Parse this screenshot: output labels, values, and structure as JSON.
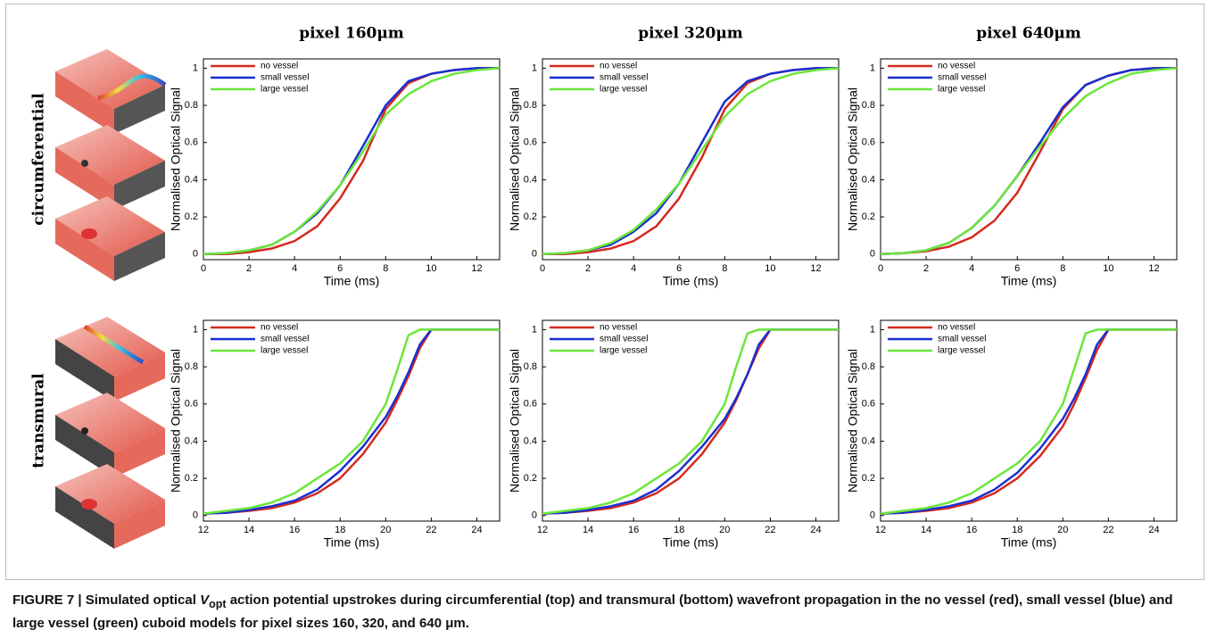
{
  "columns": [
    "pixel  160μm",
    "pixel 320μm",
    "pixel 640μm"
  ],
  "rows": [
    "circumferential",
    "transmural"
  ],
  "caption": {
    "lead": "FIGURE 7 | Simulated optical ",
    "symbol": "V",
    "subscript": "opt",
    "rest": " action potential upstrokes during circumferential (top) and transmural (bottom) wavefront propagation in the no vessel (red), small vessel (blue) and large vessel (green) cuboid models for pixel sizes 160, 320, and 640 μm."
  },
  "chart_data": [
    {
      "type": "line",
      "xlabel": "Time (ms)",
      "ylabel": "Normalised Optical Signal",
      "legend": "upper left",
      "x": [
        0,
        1,
        2,
        3,
        4,
        5,
        6,
        7,
        8,
        9,
        10,
        11,
        12,
        13
      ],
      "xlim": [
        0,
        13
      ],
      "xticks": [
        0,
        2,
        4,
        6,
        8,
        10,
        12
      ],
      "ylim": [
        -0.03,
        1.05
      ],
      "yticks": [
        0,
        0.2,
        0.4,
        0.6,
        0.8,
        1
      ],
      "series": [
        {
          "name": "no vessel",
          "color": "#d42a1e",
          "values": [
            0,
            0,
            0.01,
            0.03,
            0.07,
            0.15,
            0.3,
            0.5,
            0.78,
            0.92,
            0.97,
            0.99,
            1,
            1
          ]
        },
        {
          "name": "small vessel",
          "color": "#1a2fd0",
          "values": [
            0,
            0.005,
            0.02,
            0.05,
            0.12,
            0.22,
            0.37,
            0.58,
            0.8,
            0.93,
            0.97,
            0.99,
            1,
            1
          ]
        },
        {
          "name": "large vessel",
          "color": "#6be63a",
          "values": [
            0,
            0.005,
            0.02,
            0.05,
            0.12,
            0.23,
            0.37,
            0.55,
            0.75,
            0.86,
            0.93,
            0.97,
            0.99,
            1
          ]
        }
      ]
    },
    {
      "type": "line",
      "xlabel": "Time (ms)",
      "ylabel": "Normalised Optical Signal",
      "legend": "upper left",
      "x": [
        0,
        1,
        2,
        3,
        4,
        5,
        6,
        7,
        8,
        9,
        10,
        11,
        12,
        13
      ],
      "xlim": [
        0,
        13
      ],
      "xticks": [
        0,
        2,
        4,
        6,
        8,
        10,
        12
      ],
      "ylim": [
        -0.03,
        1.05
      ],
      "yticks": [
        0,
        0.2,
        0.4,
        0.6,
        0.8,
        1
      ],
      "series": [
        {
          "name": "no vessel",
          "color": "#d42a1e",
          "values": [
            0,
            0,
            0.01,
            0.03,
            0.07,
            0.15,
            0.3,
            0.52,
            0.78,
            0.92,
            0.97,
            0.99,
            1,
            1
          ]
        },
        {
          "name": "small vessel",
          "color": "#1a2fd0",
          "values": [
            0,
            0.005,
            0.02,
            0.05,
            0.12,
            0.22,
            0.38,
            0.6,
            0.82,
            0.93,
            0.97,
            0.99,
            1,
            1
          ]
        },
        {
          "name": "large vessel",
          "color": "#6be63a",
          "values": [
            0,
            0.005,
            0.02,
            0.06,
            0.13,
            0.24,
            0.38,
            0.56,
            0.74,
            0.86,
            0.93,
            0.97,
            0.99,
            1
          ]
        }
      ]
    },
    {
      "type": "line",
      "xlabel": "Time (ms)",
      "ylabel": "Normalised Optical Signal",
      "legend": "upper left",
      "x": [
        0,
        1,
        2,
        3,
        4,
        5,
        6,
        7,
        8,
        9,
        10,
        11,
        12,
        13
      ],
      "xlim": [
        0,
        13
      ],
      "xticks": [
        0,
        2,
        4,
        6,
        8,
        10,
        12
      ],
      "ylim": [
        -0.03,
        1.05
      ],
      "yticks": [
        0,
        0.2,
        0.4,
        0.6,
        0.8,
        1
      ],
      "series": [
        {
          "name": "no vessel",
          "color": "#d42a1e",
          "values": [
            0,
            0.005,
            0.015,
            0.04,
            0.09,
            0.18,
            0.33,
            0.55,
            0.78,
            0.91,
            0.96,
            0.99,
            1,
            1
          ]
        },
        {
          "name": "small vessel",
          "color": "#1a2fd0",
          "values": [
            0,
            0.005,
            0.02,
            0.06,
            0.14,
            0.26,
            0.42,
            0.6,
            0.79,
            0.91,
            0.96,
            0.99,
            1,
            1
          ]
        },
        {
          "name": "large vessel",
          "color": "#6be63a",
          "values": [
            0,
            0.005,
            0.02,
            0.06,
            0.14,
            0.26,
            0.42,
            0.58,
            0.73,
            0.85,
            0.92,
            0.97,
            0.99,
            1
          ]
        }
      ]
    },
    {
      "type": "line",
      "xlabel": "Time (ms)",
      "ylabel": "Normalised Optical Signal",
      "legend": "upper left",
      "x": [
        12,
        13,
        14,
        15,
        16,
        17,
        18,
        19,
        20,
        20.5,
        21,
        21.5,
        22,
        23,
        24,
        25
      ],
      "xlim": [
        12,
        25
      ],
      "xticks": [
        12,
        14,
        16,
        18,
        20,
        22,
        24
      ],
      "ylim": [
        -0.03,
        1.05
      ],
      "yticks": [
        0,
        0.2,
        0.4,
        0.6,
        0.8,
        1
      ],
      "series": [
        {
          "name": "no vessel",
          "color": "#d42a1e",
          "values": [
            0.01,
            0.015,
            0.025,
            0.04,
            0.07,
            0.12,
            0.2,
            0.33,
            0.5,
            0.62,
            0.75,
            0.9,
            1,
            1,
            1,
            1
          ]
        },
        {
          "name": "small vessel",
          "color": "#1a2fd0",
          "values": [
            0.01,
            0.015,
            0.03,
            0.05,
            0.08,
            0.14,
            0.24,
            0.37,
            0.53,
            0.64,
            0.77,
            0.92,
            1,
            1,
            1,
            1
          ]
        },
        {
          "name": "large vessel",
          "color": "#6be63a",
          "values": [
            0.01,
            0.025,
            0.04,
            0.07,
            0.12,
            0.2,
            0.28,
            0.4,
            0.6,
            0.78,
            0.97,
            1,
            1,
            1,
            1,
            1
          ]
        }
      ]
    },
    {
      "type": "line",
      "xlabel": "Time (ms)",
      "ylabel": "Normalised Optical Signal",
      "legend": "upper left",
      "x": [
        12,
        13,
        14,
        15,
        16,
        17,
        18,
        19,
        20,
        20.5,
        21,
        21.5,
        22,
        23,
        24,
        25
      ],
      "xlim": [
        12,
        25
      ],
      "xticks": [
        12,
        14,
        16,
        18,
        20,
        22,
        24
      ],
      "ylim": [
        -0.03,
        1.05
      ],
      "yticks": [
        0,
        0.2,
        0.4,
        0.6,
        0.8,
        1
      ],
      "series": [
        {
          "name": "no vessel",
          "color": "#d42a1e",
          "values": [
            0.01,
            0.015,
            0.025,
            0.04,
            0.07,
            0.12,
            0.2,
            0.33,
            0.5,
            0.62,
            0.76,
            0.9,
            1,
            1,
            1,
            1
          ]
        },
        {
          "name": "small vessel",
          "color": "#1a2fd0",
          "values": [
            0.01,
            0.015,
            0.03,
            0.05,
            0.08,
            0.14,
            0.24,
            0.37,
            0.52,
            0.63,
            0.76,
            0.92,
            1,
            1,
            1,
            1
          ]
        },
        {
          "name": "large vessel",
          "color": "#6be63a",
          "values": [
            0.01,
            0.025,
            0.04,
            0.07,
            0.12,
            0.2,
            0.28,
            0.4,
            0.6,
            0.8,
            0.98,
            1,
            1,
            1,
            1,
            1
          ]
        }
      ]
    },
    {
      "type": "line",
      "xlabel": "Time (ms)",
      "ylabel": "Normalised Optical Signal",
      "legend": "upper left",
      "x": [
        12,
        13,
        14,
        15,
        16,
        17,
        18,
        19,
        20,
        20.5,
        21,
        21.5,
        22,
        23,
        24,
        25
      ],
      "xlim": [
        12,
        25
      ],
      "xticks": [
        12,
        14,
        16,
        18,
        20,
        22,
        24
      ],
      "ylim": [
        -0.03,
        1.05
      ],
      "yticks": [
        0,
        0.2,
        0.4,
        0.6,
        0.8,
        1
      ],
      "series": [
        {
          "name": "no vessel",
          "color": "#d42a1e",
          "values": [
            0.01,
            0.015,
            0.025,
            0.04,
            0.07,
            0.12,
            0.2,
            0.32,
            0.48,
            0.6,
            0.74,
            0.89,
            1,
            1,
            1,
            1
          ]
        },
        {
          "name": "small vessel",
          "color": "#1a2fd0",
          "values": [
            0.01,
            0.015,
            0.03,
            0.05,
            0.08,
            0.14,
            0.23,
            0.36,
            0.52,
            0.63,
            0.76,
            0.92,
            1,
            1,
            1,
            1
          ]
        },
        {
          "name": "large vessel",
          "color": "#6be63a",
          "values": [
            0.01,
            0.025,
            0.04,
            0.07,
            0.12,
            0.2,
            0.28,
            0.4,
            0.6,
            0.79,
            0.98,
            1,
            1,
            1,
            1,
            1
          ]
        }
      ]
    }
  ]
}
